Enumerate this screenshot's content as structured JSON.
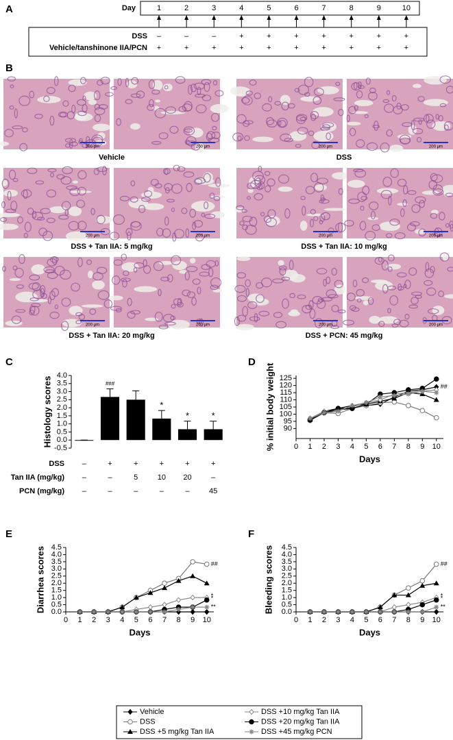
{
  "panel_a": {
    "label": "A",
    "day_label": "Day",
    "days": [
      1,
      2,
      3,
      4,
      5,
      6,
      7,
      8,
      9,
      10
    ],
    "rows": [
      {
        "label": "DSS",
        "marks": [
          "–",
          "–",
          "–",
          "+",
          "+",
          "+",
          "+",
          "+",
          "+",
          "+"
        ]
      },
      {
        "label": "Vehicle/tanshinone IIA/PCN",
        "marks": [
          "+",
          "+",
          "+",
          "+",
          "+",
          "+",
          "+",
          "+",
          "+",
          "+"
        ]
      }
    ]
  },
  "panel_b": {
    "label": "B",
    "scale_bar": "200 μm",
    "captions": [
      "Vehicle",
      "DSS",
      "DSS + Tan IIA: 5 mg/kg",
      "DSS + Tan IIA: 10 mg/kg",
      "DSS + Tan IIA: 20 mg/kg",
      "DSS + PCN: 45 mg/kg"
    ]
  },
  "chart_data": [
    {
      "type": "bar",
      "panel": "C",
      "ylabel": "Histology scores",
      "color": "#000000",
      "categories": [
        null,
        null,
        null,
        null,
        null,
        null
      ],
      "values": [
        0,
        2.67,
        2.5,
        1.33,
        0.67,
        0.67
      ],
      "errors": [
        0,
        0.5,
        0.55,
        0.5,
        0.5,
        0.5
      ],
      "annotations": [
        null,
        "###",
        null,
        "*",
        "*",
        "*"
      ],
      "ylim": [
        -0.5,
        4.0
      ],
      "yticks": [
        {
          "value": -0.5,
          "label": "-0.5"
        },
        {
          "value": 0,
          "label": "0.0"
        },
        {
          "value": 0.5,
          "label": "0.5"
        },
        {
          "value": 1,
          "label": "1.0"
        },
        {
          "value": 1.5,
          "label": "1.5"
        },
        {
          "value": 2,
          "label": "2.0"
        },
        {
          "value": 2.5,
          "label": "2.5"
        },
        {
          "value": 3,
          "label": "3.0"
        },
        {
          "value": 3.5,
          "label": "3.5"
        },
        {
          "value": 4,
          "label": "4.0"
        }
      ],
      "x_table": [
        {
          "label": "DSS",
          "cells": [
            "–",
            "+",
            "+",
            "+",
            "+",
            "+"
          ]
        },
        {
          "label": "Tan IIA (mg/kg)",
          "cells": [
            "–",
            "–",
            "5",
            "10",
            "20",
            "–"
          ]
        },
        {
          "label": "PCN (mg/kg)",
          "cells": [
            "–",
            "–",
            "–",
            "–",
            "–",
            "45"
          ]
        }
      ]
    },
    {
      "type": "line",
      "panel": "D",
      "xlabel": "Days",
      "ylabel": "% initial body weight",
      "x": [
        1,
        2,
        3,
        4,
        5,
        6,
        7,
        8,
        9,
        10
      ],
      "xlim": [
        0,
        10.5
      ],
      "xticks": [
        0,
        1,
        2,
        3,
        4,
        5,
        6,
        7,
        8,
        9,
        10
      ],
      "ylim": [
        83,
        127
      ],
      "yticks": [
        90,
        95,
        100,
        105,
        110,
        115,
        120,
        125
      ],
      "series": [
        {
          "name": "Vehicle",
          "color": "#000000",
          "marker": "diamond",
          "values": [
            97,
            101,
            103,
            104,
            106,
            107,
            112,
            116,
            117,
            119
          ],
          "end_label": "##"
        },
        {
          "name": "DSS",
          "color": "#777777",
          "marker": "circle-open",
          "values": [
            95.5,
            101,
            100.5,
            104,
            106,
            108,
            108.5,
            106,
            102.5,
            97.5
          ]
        },
        {
          "name": "DSS +5 mg/kg Tan IIA",
          "color": "#000000",
          "marker": "triangle",
          "values": [
            96.5,
            102,
            104,
            106,
            107,
            109,
            111,
            115,
            114,
            110
          ]
        },
        {
          "name": "DSS +10 mg/kg Tan IIA",
          "color": "#888888",
          "marker": "diamond-open",
          "values": [
            97,
            102,
            103,
            105,
            108,
            110,
            114,
            115,
            116,
            117
          ]
        },
        {
          "name": "DSS +20 mg/kg Tan IIA",
          "color": "#000000",
          "marker": "circle",
          "values": [
            96,
            101,
            104,
            104,
            107,
            114,
            115,
            117,
            118,
            124.5
          ]
        },
        {
          "name": "DSS +45 mg/kg PCN",
          "color": "#888888",
          "marker": "asterisk",
          "values": [
            97,
            101,
            102,
            106,
            108,
            112,
            113,
            114,
            116,
            115
          ]
        }
      ]
    },
    {
      "type": "line",
      "panel": "E",
      "xlabel": "Days",
      "ylabel": "Diarrhea scores",
      "x": [
        1,
        2,
        3,
        4,
        5,
        6,
        7,
        8,
        9,
        10
      ],
      "xlim": [
        0,
        10.5
      ],
      "xticks": [
        0,
        1,
        2,
        3,
        4,
        5,
        6,
        7,
        8,
        9,
        10
      ],
      "ylim": [
        0,
        4.5
      ],
      "yticks": [
        {
          "value": 0,
          "label": "0.0"
        },
        {
          "value": 0.5,
          "label": "0.5"
        },
        {
          "value": 1,
          "label": "1.0"
        },
        {
          "value": 1.5,
          "label": "1.5"
        },
        {
          "value": 2,
          "label": "2.0"
        },
        {
          "value": 2.5,
          "label": "2.5"
        },
        {
          "value": 3,
          "label": "3.0"
        },
        {
          "value": 3.5,
          "label": "3.5"
        },
        {
          "value": 4,
          "label": "4.0"
        },
        {
          "value": 4.5,
          "label": "4.5"
        }
      ],
      "series": [
        {
          "name": "Vehicle",
          "color": "#000000",
          "marker": "diamond",
          "values": [
            0,
            0,
            0,
            0,
            0,
            0,
            0,
            0,
            0,
            0
          ]
        },
        {
          "name": "DSS",
          "color": "#777777",
          "marker": "circle-open",
          "values": [
            0,
            0,
            0,
            0.33,
            1,
            1.5,
            2,
            2.33,
            3.5,
            3.33
          ],
          "end_label": "##"
        },
        {
          "name": "DSS +5 mg/kg Tan IIA",
          "color": "#000000",
          "marker": "triangle",
          "values": [
            0,
            0,
            0,
            0.33,
            1,
            1.33,
            1.67,
            2.17,
            2.5,
            2
          ]
        },
        {
          "name": "DSS +10 mg/kg Tan IIA",
          "color": "#888888",
          "marker": "diamond-open",
          "values": [
            0,
            0,
            0,
            0,
            0.17,
            0.33,
            0.5,
            0.83,
            1,
            1
          ],
          "end_label": "*"
        },
        {
          "name": "DSS +20 mg/kg Tan IIA",
          "color": "#000000",
          "marker": "circle",
          "values": [
            0,
            0,
            0,
            0,
            0,
            0,
            0.17,
            0.33,
            0.33,
            0.83
          ],
          "end_label": "*"
        },
        {
          "name": "DSS +45 mg/kg PCN",
          "color": "#888888",
          "marker": "asterisk",
          "values": [
            0,
            0,
            0,
            0,
            0,
            0,
            0,
            0.17,
            0.33,
            0.33
          ],
          "end_label": "**"
        }
      ]
    },
    {
      "type": "line",
      "panel": "F",
      "xlabel": "Days",
      "ylabel": "Bleeding scores",
      "x": [
        1,
        2,
        3,
        4,
        5,
        6,
        7,
        8,
        9,
        10
      ],
      "xlim": [
        0,
        10.5
      ],
      "xticks": [
        0,
        1,
        2,
        3,
        4,
        5,
        6,
        7,
        8,
        9,
        10
      ],
      "ylim": [
        0,
        4.5
      ],
      "yticks": [
        {
          "value": 0,
          "label": "0.0"
        },
        {
          "value": 0.5,
          "label": "0.5"
        },
        {
          "value": 1,
          "label": "1.0"
        },
        {
          "value": 1.5,
          "label": "1.5"
        },
        {
          "value": 2,
          "label": "2.0"
        },
        {
          "value": 2.5,
          "label": "2.5"
        },
        {
          "value": 3,
          "label": "3.0"
        },
        {
          "value": 3.5,
          "label": "3.5"
        },
        {
          "value": 4,
          "label": "4.0"
        },
        {
          "value": 4.5,
          "label": "4.5"
        }
      ],
      "series": [
        {
          "name": "Vehicle",
          "color": "#000000",
          "marker": "diamond",
          "values": [
            0,
            0,
            0,
            0,
            0,
            0,
            0,
            0,
            0,
            0
          ]
        },
        {
          "name": "DSS",
          "color": "#777777",
          "marker": "circle-open",
          "values": [
            0,
            0,
            0,
            0,
            0,
            0.33,
            1.17,
            1.67,
            2.17,
            3.33
          ],
          "end_label": "##"
        },
        {
          "name": "DSS +5 mg/kg Tan IIA",
          "color": "#000000",
          "marker": "triangle",
          "values": [
            0,
            0,
            0,
            0,
            0,
            0.33,
            1.17,
            1.17,
            1.83,
            2
          ]
        },
        {
          "name": "DSS +10 mg/kg Tan IIA",
          "color": "#888888",
          "marker": "diamond-open",
          "values": [
            0,
            0,
            0,
            0,
            0,
            0,
            0.33,
            0.5,
            0.67,
            1
          ],
          "end_label": "*"
        },
        {
          "name": "DSS +20 mg/kg Tan IIA",
          "color": "#000000",
          "marker": "circle",
          "values": [
            0,
            0,
            0,
            0,
            0,
            0,
            0,
            0.17,
            0.5,
            0.83
          ],
          "end_label": "*"
        },
        {
          "name": "DSS +45 mg/kg PCN",
          "color": "#888888",
          "marker": "asterisk",
          "values": [
            0,
            0,
            0,
            0,
            0,
            0,
            0,
            0,
            0,
            0.33
          ],
          "end_label": "**"
        }
      ]
    }
  ]
}
